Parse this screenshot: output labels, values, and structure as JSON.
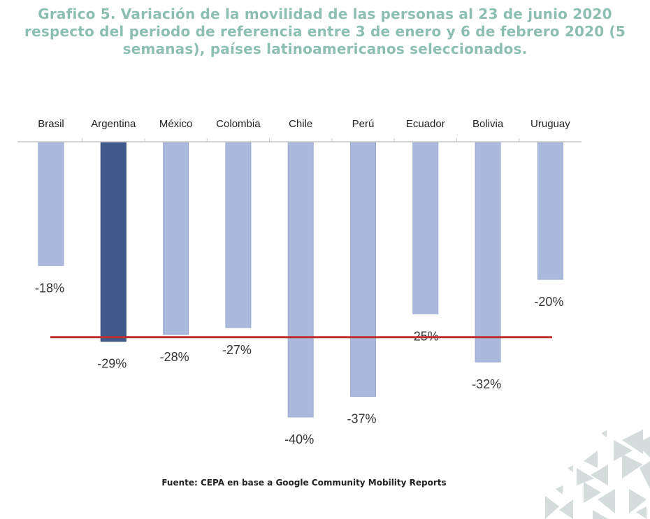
{
  "chart_data": {
    "type": "bar",
    "title_lines": [
      "Grafico 5. Variación de la movilidad de las personas al 23 de junio 2020",
      "respecto del periodo de referencia entre 3 de enero y 6 de febrero 2020 (5",
      "semanas), países latinoamericanos seleccionados."
    ],
    "categories": [
      "Brasil",
      "Argentina",
      "México",
      "Colombia",
      "Chile",
      "Perú",
      "Ecuador",
      "Bolivia",
      "Uruguay"
    ],
    "values": [
      -18,
      -29,
      -28,
      -27,
      -40,
      -37,
      -25,
      -32,
      -20
    ],
    "data_labels": [
      "-18%",
      "-29%",
      "-28%",
      "-27%",
      "-40%",
      "-37%",
      "-25%",
      "-32%",
      "-20%"
    ],
    "highlight_category": "Argentina",
    "reference_line": -28.4,
    "xlabel": "",
    "ylabel": "",
    "ylim": [
      -45,
      0
    ],
    "grid": false,
    "colors": {
      "bar": "#abbadc",
      "highlight": "#3f5a8b",
      "reference_line": "#c0302b",
      "title": "#8cbfb2"
    },
    "source": "Fuente: CEPA en base a Google Community Mobility Reports"
  }
}
